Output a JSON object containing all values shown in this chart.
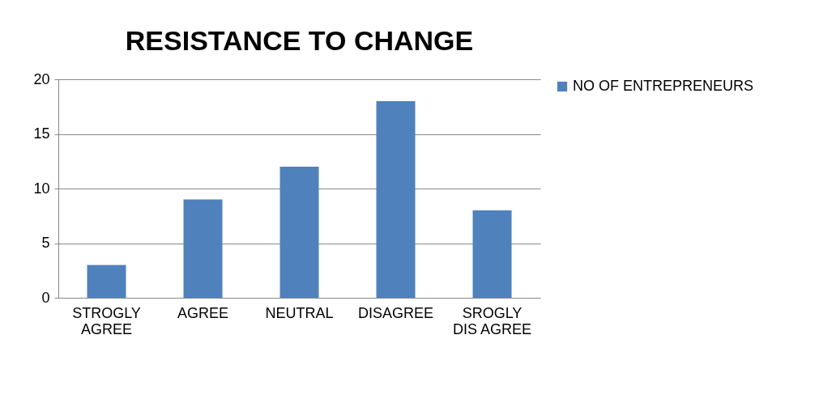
{
  "chart_data": {
    "type": "bar",
    "title": "RESISTANCE TO CHANGE",
    "categories": [
      "STROGLY\nAGREE",
      "AGREE",
      "NEUTRAL",
      "DISAGREE",
      "SROGLY\nDIS AGREE"
    ],
    "series": [
      {
        "name": "NO OF ENTREPRENEURS",
        "color": "#4f81bd",
        "values": [
          3,
          9,
          12,
          18,
          8
        ]
      }
    ],
    "ylim": [
      0,
      20
    ],
    "yticks": [
      0,
      5,
      10,
      15,
      20
    ],
    "grid": "y",
    "legend": "right"
  }
}
